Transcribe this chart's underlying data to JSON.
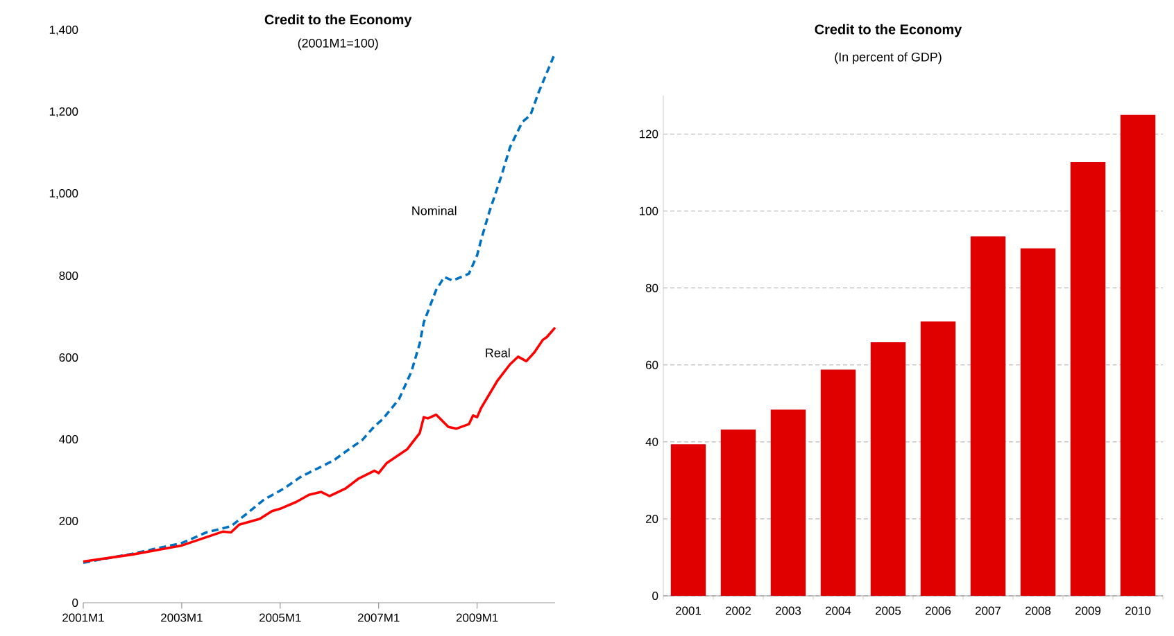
{
  "chart_data": [
    {
      "type": "line",
      "title": "Credit to the Economy",
      "subtitle": "(2001M1=100)",
      "xlim": [
        "2001-01",
        "2010-08"
      ],
      "xticks": [
        {
          "value": "2001-01",
          "label": "2001M1"
        },
        {
          "value": "2003-01",
          "label": "2003M1"
        },
        {
          "value": "2005-01",
          "label": "2005M1"
        },
        {
          "value": "2007-01",
          "label": "2007M1"
        },
        {
          "value": "2009-01",
          "label": "2009M1"
        }
      ],
      "ylim": [
        0,
        1400
      ],
      "yticks": [
        0,
        200,
        400,
        600,
        800,
        {
          "value": 1000,
          "label": "1,000"
        },
        {
          "value": 1200,
          "label": "1,200"
        },
        {
          "value": 1400,
          "label": "1,400"
        }
      ],
      "series": [
        {
          "name": "Nominal",
          "color": "#0070c0",
          "line_style": "dashed",
          "x": [
            "2001-01",
            "2002-01",
            "2003-01",
            "2003-07",
            "2004-01",
            "2004-05",
            "2004-09",
            "2005-02",
            "2005-06",
            "2005-11",
            "2006-02",
            "2006-05",
            "2006-09",
            "2006-12",
            "2007-02",
            "2007-06",
            "2007-09",
            "2007-11",
            "2007-12",
            "2008-03",
            "2008-05",
            "2008-07",
            "2008-11",
            "2009-01",
            "2009-02",
            "2009-04",
            "2009-07",
            "2009-09",
            "2009-12",
            "2010-02",
            "2010-04",
            "2010-08"
          ],
          "values": [
            98,
            120,
            146,
            172,
            187,
            219,
            252,
            280,
            308,
            333,
            348,
            370,
            398,
            432,
            449,
            499,
            566,
            634,
            686,
            765,
            797,
            788,
            805,
            850,
            889,
            957,
            1047,
            1114,
            1176,
            1193,
            1249,
            1345
          ]
        },
        {
          "name": "Real",
          "color": "#ff0000",
          "line_style": "solid",
          "x": [
            "2001-01",
            "2002-01",
            "2003-01",
            "2003-06",
            "2003-11",
            "2004-01",
            "2004-03",
            "2004-08",
            "2004-11",
            "2005-01",
            "2005-05",
            "2005-08",
            "2005-11",
            "2006-01",
            "2006-05",
            "2006-08",
            "2006-12",
            "2007-01",
            "2007-03",
            "2007-08",
            "2007-11",
            "2007-12",
            "2008-01",
            "2008-03",
            "2008-06",
            "2008-08",
            "2008-11",
            "2008-12",
            "2009-01",
            "2009-02",
            "2009-06",
            "2009-09",
            "2009-11",
            "2010-01",
            "2010-03",
            "2010-05",
            "2010-06",
            "2010-08"
          ],
          "values": [
            101,
            118,
            140,
            157,
            174,
            172,
            191,
            205,
            224,
            230,
            247,
            264,
            271,
            261,
            280,
            303,
            323,
            317,
            342,
            376,
            415,
            454,
            451,
            460,
            430,
            426,
            437,
            458,
            454,
            477,
            544,
            583,
            602,
            591,
            613,
            643,
            650,
            673
          ]
        }
      ]
    },
    {
      "type": "bar",
      "title": "Credit to the Economy",
      "subtitle": "(In percent of GDP)",
      "categories": [
        "2001",
        "2002",
        "2003",
        "2004",
        "2005",
        "2006",
        "2007",
        "2008",
        "2009",
        "2010"
      ],
      "values": [
        39.4,
        43.2,
        48.4,
        58.8,
        65.9,
        71.3,
        93.4,
        90.3,
        112.7,
        125.0
      ],
      "color": "#e00000",
      "ylim": [
        0,
        130
      ],
      "yticks": [
        0,
        20,
        40,
        60,
        80,
        100,
        120
      ],
      "grid": "y"
    }
  ]
}
